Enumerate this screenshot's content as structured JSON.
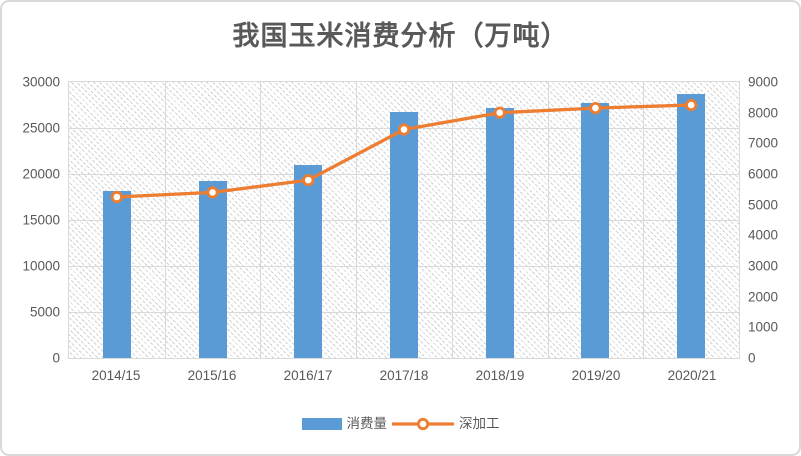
{
  "title": "我国玉米消费分析（万吨）",
  "colors": {
    "bar": "#5b9bd5",
    "line": "#ed7d31",
    "marker_fill": "#ffffff",
    "grid": "#d9d9d9",
    "text": "#595959",
    "border": "#d9d9d9"
  },
  "chart_data": {
    "type": "bar",
    "subtype": "bar-and-line-combo",
    "title": "我国玉米消费分析（万吨）",
    "categories": [
      "2014/15",
      "2015/16",
      "2016/17",
      "2017/18",
      "2018/19",
      "2019/20",
      "2020/21"
    ],
    "series": [
      {
        "name": "消费量",
        "type": "bar",
        "axis": "left",
        "values": [
          18200,
          19200,
          21000,
          26700,
          27200,
          27700,
          28700
        ]
      },
      {
        "name": "深加工",
        "type": "line",
        "axis": "right",
        "values": [
          5250,
          5400,
          5800,
          7450,
          8000,
          8150,
          8250
        ]
      }
    ],
    "left_axis": {
      "min": 0,
      "max": 30000,
      "step": 5000,
      "ticks_top_to_bottom": [
        "30000",
        "25000",
        "20000",
        "15000",
        "10000",
        "5000",
        "0"
      ]
    },
    "right_axis": {
      "min": 0,
      "max": 9000,
      "step": 1000,
      "ticks_top_to_bottom": [
        "9000",
        "8000",
        "7000",
        "6000",
        "5000",
        "4000",
        "3000",
        "2000",
        "1000",
        "0"
      ]
    },
    "grid": "horizontal-and-vertical",
    "plot_background": "diagonal-hatch-pattern",
    "legend_position": "bottom",
    "xlabel": "",
    "ylabel_left": "",
    "ylabel_right": ""
  },
  "legend": {
    "items": [
      {
        "label": "消费量",
        "marker": "bar-swatch"
      },
      {
        "label": "深加工",
        "marker": "line-with-circle-marker"
      }
    ]
  }
}
